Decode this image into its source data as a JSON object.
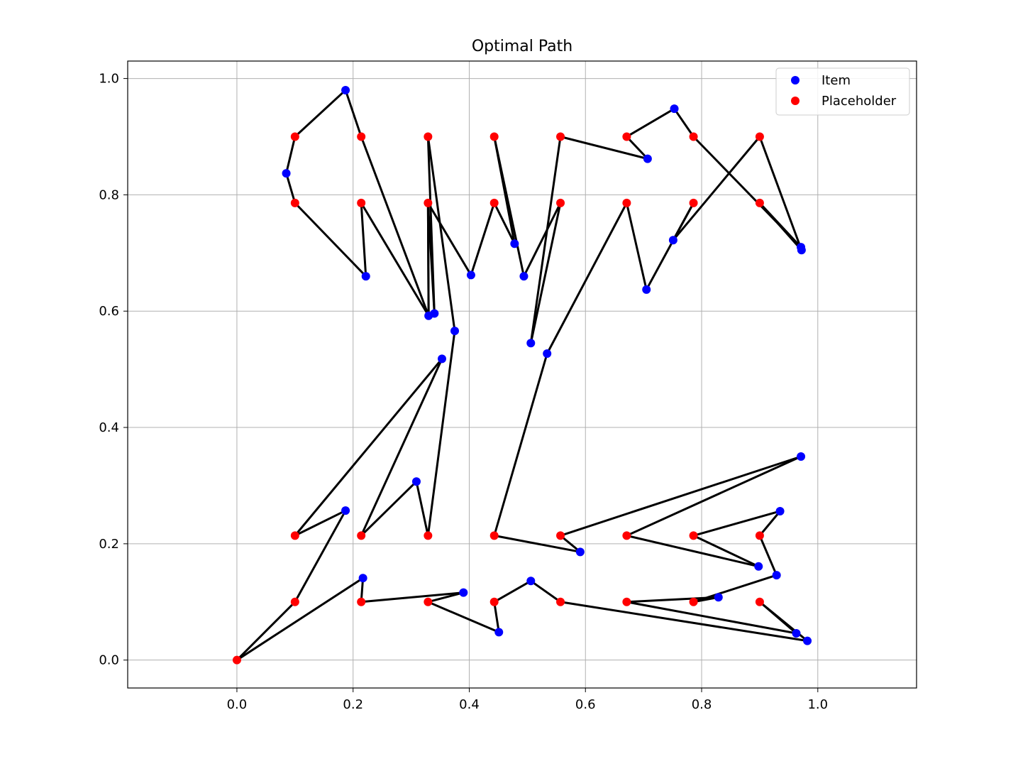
{
  "chart_data": {
    "type": "scatter",
    "title": "Optimal Path",
    "xlabel": "",
    "ylabel": "",
    "xlim": [
      -0.188,
      1.17
    ],
    "ylim": [
      -0.048,
      1.03
    ],
    "xticks": [
      "0.0",
      "0.2",
      "0.4",
      "0.6",
      "0.8",
      "1.0"
    ],
    "xtick_values": [
      0.0,
      0.2,
      0.4,
      0.6,
      0.8,
      1.0
    ],
    "yticks": [
      "0.0",
      "0.2",
      "0.4",
      "0.6",
      "0.8",
      "1.0"
    ],
    "ytick_values": [
      0.0,
      0.2,
      0.4,
      0.6,
      0.8,
      1.0
    ],
    "grid": true,
    "legend_position": "top-right",
    "series": [
      {
        "name": "Item",
        "color": "#0000ff",
        "points": [
          [
            0.187,
            0.98
          ],
          [
            0.085,
            0.837
          ],
          [
            0.222,
            0.66
          ],
          [
            0.33,
            0.592
          ],
          [
            0.34,
            0.596
          ],
          [
            0.375,
            0.566
          ],
          [
            0.353,
            0.518
          ],
          [
            0.403,
            0.662
          ],
          [
            0.478,
            0.716
          ],
          [
            0.494,
            0.66
          ],
          [
            0.506,
            0.545
          ],
          [
            0.534,
            0.527
          ],
          [
            0.707,
            0.862
          ],
          [
            0.753,
            0.948
          ],
          [
            0.971,
            0.71
          ],
          [
            0.972,
            0.705
          ],
          [
            0.751,
            0.722
          ],
          [
            0.705,
            0.637
          ],
          [
            0.187,
            0.257
          ],
          [
            0.309,
            0.307
          ],
          [
            0.591,
            0.186
          ],
          [
            0.971,
            0.35
          ],
          [
            0.935,
            0.256
          ],
          [
            0.898,
            0.161
          ],
          [
            0.929,
            0.146
          ],
          [
            0.217,
            0.141
          ],
          [
            0.39,
            0.116
          ],
          [
            0.451,
            0.048
          ],
          [
            0.506,
            0.136
          ],
          [
            0.829,
            0.108
          ],
          [
            0.963,
            0.046
          ],
          [
            0.982,
            0.033
          ]
        ]
      },
      {
        "name": "Placeholder",
        "color": "#ff0000",
        "points": [
          [
            0.0,
            0.0
          ],
          [
            0.1,
            0.9
          ],
          [
            0.214,
            0.9
          ],
          [
            0.329,
            0.9
          ],
          [
            0.443,
            0.9
          ],
          [
            0.557,
            0.9
          ],
          [
            0.671,
            0.9
          ],
          [
            0.786,
            0.9
          ],
          [
            0.9,
            0.9
          ],
          [
            0.1,
            0.786
          ],
          [
            0.214,
            0.786
          ],
          [
            0.329,
            0.786
          ],
          [
            0.443,
            0.786
          ],
          [
            0.557,
            0.786
          ],
          [
            0.671,
            0.786
          ],
          [
            0.786,
            0.786
          ],
          [
            0.9,
            0.786
          ],
          [
            0.1,
            0.214
          ],
          [
            0.214,
            0.214
          ],
          [
            0.329,
            0.214
          ],
          [
            0.443,
            0.214
          ],
          [
            0.557,
            0.214
          ],
          [
            0.671,
            0.214
          ],
          [
            0.786,
            0.214
          ],
          [
            0.9,
            0.214
          ],
          [
            0.1,
            0.1
          ],
          [
            0.214,
            0.1
          ],
          [
            0.329,
            0.1
          ],
          [
            0.443,
            0.1
          ],
          [
            0.557,
            0.1
          ],
          [
            0.671,
            0.1
          ],
          [
            0.786,
            0.1
          ],
          [
            0.9,
            0.1
          ]
        ]
      }
    ],
    "path": {
      "color": "#000000",
      "points": [
        [
          0.0,
          0.0
        ],
        [
          0.1,
          0.1
        ],
        [
          0.187,
          0.257
        ],
        [
          0.1,
          0.214
        ],
        [
          0.353,
          0.518
        ],
        [
          0.214,
          0.214
        ],
        [
          0.309,
          0.307
        ],
        [
          0.329,
          0.214
        ],
        [
          0.375,
          0.566
        ],
        [
          0.329,
          0.9
        ],
        [
          0.34,
          0.596
        ],
        [
          0.329,
          0.786
        ],
        [
          0.33,
          0.592
        ],
        [
          0.214,
          0.9
        ],
        [
          0.187,
          0.98
        ],
        [
          0.1,
          0.9
        ],
        [
          0.085,
          0.837
        ],
        [
          0.1,
          0.786
        ],
        [
          0.222,
          0.66
        ],
        [
          0.214,
          0.786
        ],
        [
          0.33,
          0.592
        ],
        [
          0.329,
          0.786
        ],
        [
          0.403,
          0.662
        ],
        [
          0.443,
          0.786
        ],
        [
          0.478,
          0.716
        ],
        [
          0.443,
          0.9
        ],
        [
          0.494,
          0.66
        ],
        [
          0.557,
          0.786
        ],
        [
          0.506,
          0.545
        ],
        [
          0.557,
          0.9
        ],
        [
          0.707,
          0.862
        ],
        [
          0.671,
          0.9
        ],
        [
          0.753,
          0.948
        ],
        [
          0.786,
          0.9
        ],
        [
          0.971,
          0.71
        ],
        [
          0.9,
          0.786
        ],
        [
          0.972,
          0.705
        ],
        [
          0.9,
          0.9
        ],
        [
          0.751,
          0.722
        ],
        [
          0.786,
          0.786
        ],
        [
          0.705,
          0.637
        ],
        [
          0.671,
          0.786
        ],
        [
          0.534,
          0.527
        ],
        [
          0.443,
          0.214
        ],
        [
          0.591,
          0.186
        ],
        [
          0.557,
          0.214
        ],
        [
          0.971,
          0.35
        ],
        [
          0.671,
          0.214
        ],
        [
          0.898,
          0.161
        ],
        [
          0.786,
          0.214
        ],
        [
          0.935,
          0.256
        ],
        [
          0.9,
          0.214
        ],
        [
          0.929,
          0.146
        ],
        [
          0.786,
          0.1
        ],
        [
          0.829,
          0.108
        ],
        [
          0.671,
          0.1
        ],
        [
          0.963,
          0.046
        ],
        [
          0.9,
          0.1
        ],
        [
          0.982,
          0.033
        ],
        [
          0.557,
          0.1
        ],
        [
          0.506,
          0.136
        ],
        [
          0.443,
          0.1
        ],
        [
          0.451,
          0.048
        ],
        [
          0.329,
          0.1
        ],
        [
          0.39,
          0.116
        ],
        [
          0.214,
          0.1
        ],
        [
          0.217,
          0.141
        ],
        [
          0.0,
          0.0
        ]
      ]
    }
  }
}
